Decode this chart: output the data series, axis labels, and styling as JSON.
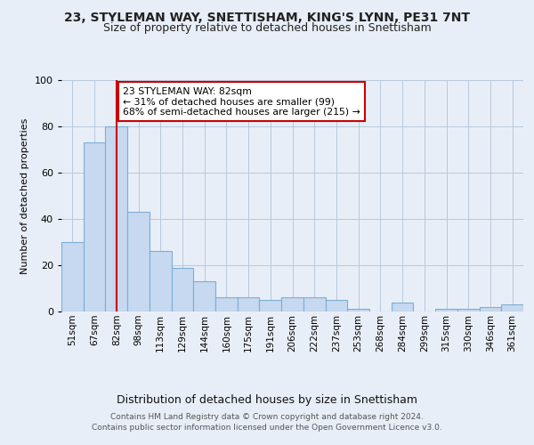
{
  "title1": "23, STYLEMAN WAY, SNETTISHAM, KING'S LYNN, PE31 7NT",
  "title2": "Size of property relative to detached houses in Snettisham",
  "xlabel": "Distribution of detached houses by size in Snettisham",
  "ylabel": "Number of detached properties",
  "footnote1": "Contains HM Land Registry data © Crown copyright and database right 2024.",
  "footnote2": "Contains public sector information licensed under the Open Government Licence v3.0.",
  "bin_labels": [
    "51sqm",
    "67sqm",
    "82sqm",
    "98sqm",
    "113sqm",
    "129sqm",
    "144sqm",
    "160sqm",
    "175sqm",
    "191sqm",
    "206sqm",
    "222sqm",
    "237sqm",
    "253sqm",
    "268sqm",
    "284sqm",
    "299sqm",
    "315sqm",
    "330sqm",
    "346sqm",
    "361sqm"
  ],
  "bar_values": [
    30,
    73,
    80,
    43,
    26,
    19,
    13,
    6,
    6,
    5,
    6,
    6,
    5,
    1,
    0,
    4,
    0,
    1,
    1,
    2,
    3
  ],
  "bar_color": "#c6d9f0",
  "bar_edge_color": "#7bafd4",
  "highlight_color": "#cc0000",
  "annotation_text": "23 STYLEMAN WAY: 82sqm\n← 31% of detached houses are smaller (99)\n68% of semi-detached houses are larger (215) →",
  "annotation_box_color": "#ffffff",
  "annotation_box_edge": "#cc0000",
  "ylim": [
    0,
    100
  ],
  "background_color": "#e8eef7"
}
